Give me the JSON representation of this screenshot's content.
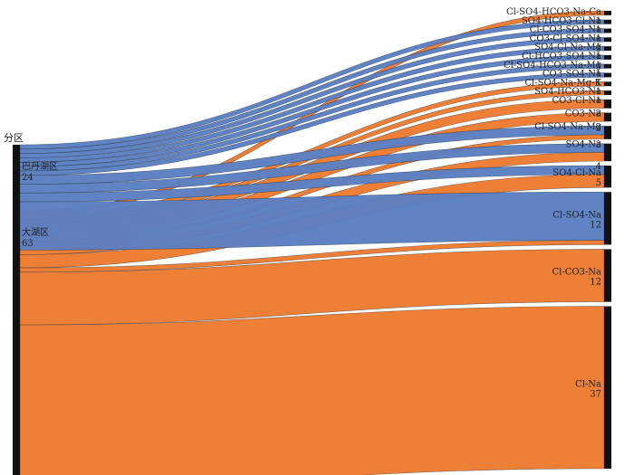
{
  "chart_data": {
    "type": "sankey",
    "title": "",
    "source_header": "分区",
    "sources": [
      {
        "name": "巴丹湖区",
        "total": 24,
        "color": "#5b7fc1"
      },
      {
        "name": "大湖区",
        "total": 63,
        "color": "#ed7b2f"
      }
    ],
    "targets": [
      {
        "name": "Cl-SO4-HCO3-Na-Ca",
        "total": 1
      },
      {
        "name": "SO4-HCO3-Cl-Na",
        "total": 1
      },
      {
        "name": "Cl-CO3-SO4-Na",
        "total": 1
      },
      {
        "name": "CO3-Cl-SO4-Na",
        "total": 1
      },
      {
        "name": "SO4-Cl-Na-Mg",
        "total": 1
      },
      {
        "name": "Cl-HCO3-SO4-Na",
        "total": 1
      },
      {
        "name": "Cl-SO4-HCO3-Na-Mg",
        "total": 1
      },
      {
        "name": "CO3-SO4-Na",
        "total": 1
      },
      {
        "name": "Cl-SO4-Na-Mg-K",
        "total": 1
      },
      {
        "name": "SO4-HCO3-Na",
        "total": 1
      },
      {
        "name": "CO3-Cl-Na",
        "total": 2
      },
      {
        "name": "CO3-Na",
        "total": 2
      },
      {
        "name": "Cl-SO4-Na-Mg",
        "total": 3
      },
      {
        "name": "SO4-Na",
        "total": 4
      },
      {
        "name": "SO4-Cl-Na",
        "total": 5
      },
      {
        "name": "Cl-SO4-Na",
        "total": 12
      },
      {
        "name": "Cl-CO3-Na",
        "total": 12
      },
      {
        "name": "Cl-Na",
        "total": 37
      }
    ],
    "flows": [
      {
        "source": "大湖区",
        "target": "Cl-SO4-HCO3-Na-Ca",
        "value": 1
      },
      {
        "source": "巴丹湖区",
        "target": "SO4-HCO3-Cl-Na",
        "value": 1
      },
      {
        "source": "巴丹湖区",
        "target": "Cl-CO3-SO4-Na",
        "value": 1
      },
      {
        "source": "巴丹湖区",
        "target": "CO3-Cl-SO4-Na",
        "value": 1
      },
      {
        "source": "巴丹湖区",
        "target": "SO4-Cl-Na-Mg",
        "value": 1
      },
      {
        "source": "巴丹湖区",
        "target": "Cl-HCO3-SO4-Na",
        "value": 1
      },
      {
        "source": "巴丹湖区",
        "target": "Cl-SO4-HCO3-Na-Mg",
        "value": 1
      },
      {
        "source": "巴丹湖区",
        "target": "CO3-SO4-Na",
        "value": 1
      },
      {
        "source": "大湖区",
        "target": "Cl-SO4-Na-Mg-K",
        "value": 1
      },
      {
        "source": "大湖区",
        "target": "SO4-HCO3-Na",
        "value": 1
      },
      {
        "source": "大湖区",
        "target": "CO3-Cl-Na",
        "value": 2
      },
      {
        "source": "大湖区",
        "target": "CO3-Na",
        "value": 2
      },
      {
        "source": "巴丹湖区",
        "target": "Cl-SO4-Na-Mg",
        "value": 2
      },
      {
        "source": "大湖区",
        "target": "Cl-SO4-Na-Mg",
        "value": 1
      },
      {
        "source": "巴丹湖区",
        "target": "SO4-Na",
        "value": 2
      },
      {
        "source": "大湖区",
        "target": "SO4-Na",
        "value": 2
      },
      {
        "source": "巴丹湖区",
        "target": "SO4-Cl-Na",
        "value": 2
      },
      {
        "source": "大湖区",
        "target": "SO4-Cl-Na",
        "value": 3
      },
      {
        "source": "巴丹湖区",
        "target": "Cl-SO4-Na",
        "value": 11
      },
      {
        "source": "大湖区",
        "target": "Cl-SO4-Na",
        "value": 1
      },
      {
        "source": "大湖区",
        "target": "Cl-CO3-Na",
        "value": 12
      },
      {
        "source": "大湖区",
        "target": "Cl-Na",
        "value": 37
      }
    ],
    "colors": {
      "node_bar": "#111111",
      "background": "#ffffff"
    }
  }
}
